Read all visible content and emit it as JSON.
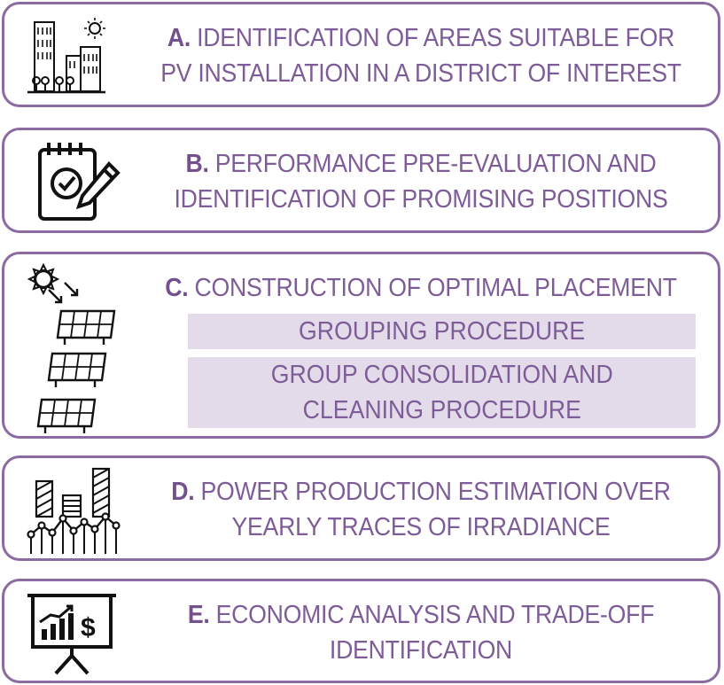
{
  "steps": [
    {
      "letter": "A.",
      "line1": "IDENTIFICATION OF AREAS SUITABLE FOR",
      "line2": "PV INSTALLATION IN A DISTRICT OF INTEREST",
      "icon": "city-buildings-icon"
    },
    {
      "letter": "B.",
      "line1": "PERFORMANCE PRE-EVALUATION AND",
      "line2": "IDENTIFICATION OF PROMISING POSITIONS",
      "icon": "checklist-pencil-icon"
    },
    {
      "letter": "C.",
      "line1": "CONSTRUCTION OF OPTIMAL PLACEMENT",
      "line2": "",
      "icon": "sun-solar-panels-icon"
    },
    {
      "letter": "D.",
      "line1": "POWER PRODUCTION ESTIMATION OVER",
      "line2": "YEARLY TRACES OF IRRADIANCE",
      "icon": "bar-line-chart-icon"
    },
    {
      "letter": "E.",
      "line1": "ECONOMIC ANALYSIS AND TRADE-OFF",
      "line2": "IDENTIFICATION",
      "icon": "presentation-dollar-icon"
    }
  ],
  "substeps": [
    {
      "line1": "GROUPING PROCEDURE",
      "line2": ""
    },
    {
      "line1": "GROUP CONSOLIDATION AND",
      "line2": "CLEANING PROCEDURE"
    }
  ],
  "colors": {
    "border": "#8c6ba3",
    "text": "#7e5c97",
    "substep_fill": "#e3dbe9",
    "icon": "#111111"
  }
}
